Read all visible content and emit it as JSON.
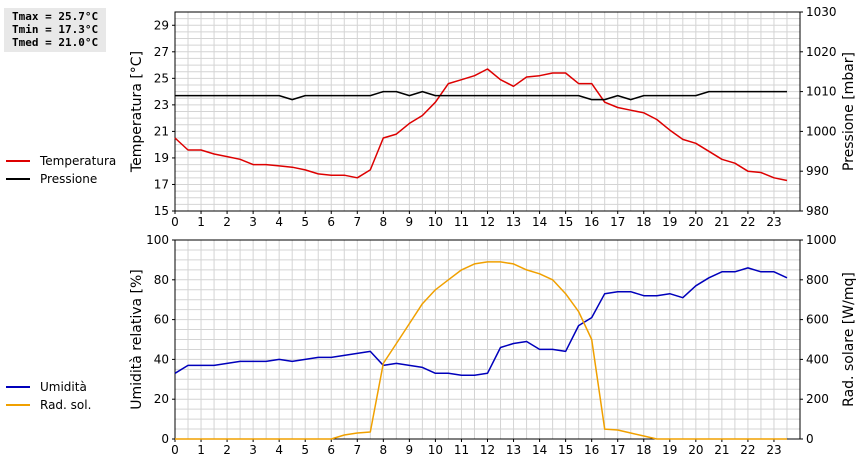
{
  "stats": {
    "tmax": "Tmax = 25.7°C",
    "tmin": "Tmin = 17.3°C",
    "tmed": "Tmed = 21.0°C"
  },
  "colors": {
    "temperatura": "#dd0000",
    "pressione": "#000000",
    "umidita": "#0000bb",
    "radsol": "#f0a000",
    "grid": "#d4d4d4"
  },
  "chart_data": [
    {
      "type": "line",
      "ylabel": "Temperatura [°C]",
      "y2label": "Pressione [mbar]",
      "xlim": [
        0,
        24
      ],
      "ylim": [
        15,
        30
      ],
      "y2lim": [
        980,
        1030
      ],
      "xticks": [
        "0",
        "1",
        "2",
        "3",
        "4",
        "5",
        "6",
        "7",
        "8",
        "9",
        "10",
        "11",
        "12",
        "13",
        "14",
        "15",
        "16",
        "17",
        "18",
        "19",
        "20",
        "21",
        "22",
        "23"
      ],
      "yticks": [
        "15",
        "17",
        "19",
        "21",
        "23",
        "25",
        "27",
        "29"
      ],
      "y2ticks": [
        "980",
        "990",
        "1000",
        "1010",
        "1020",
        "1030"
      ],
      "legend": "left",
      "series": [
        {
          "name": "Temperatura",
          "axis": "left",
          "x": [
            0,
            0.5,
            1,
            1.5,
            2,
            2.5,
            3,
            3.5,
            4,
            4.5,
            5,
            5.5,
            6,
            6.5,
            7,
            7.5,
            8,
            8.5,
            9,
            9.5,
            10,
            10.5,
            11,
            11.5,
            12,
            12.5,
            13,
            13.5,
            14,
            14.5,
            15,
            15.5,
            16,
            16.5,
            17,
            17.5,
            18,
            18.5,
            19,
            19.5,
            20,
            20.5,
            21,
            21.5,
            22,
            22.5,
            23,
            23.5
          ],
          "values": [
            20.5,
            19.6,
            19.6,
            19.3,
            19.1,
            18.9,
            18.5,
            18.5,
            18.4,
            18.3,
            18.1,
            17.8,
            17.7,
            17.7,
            17.5,
            18.1,
            20.5,
            20.8,
            21.6,
            22.2,
            23.2,
            24.6,
            24.9,
            25.2,
            25.7,
            24.9,
            24.4,
            25.1,
            25.2,
            25.4,
            25.4,
            24.6,
            24.6,
            23.2,
            22.8,
            22.6,
            22.4,
            21.9,
            21.1,
            20.4,
            20.1,
            19.5,
            18.9,
            18.6,
            18.0,
            17.9,
            17.5,
            17.3
          ]
        },
        {
          "name": "Pressione",
          "axis": "right",
          "x": [
            0,
            0.5,
            1,
            1.5,
            2,
            2.5,
            3,
            3.5,
            4,
            4.5,
            5,
            5.5,
            6,
            6.5,
            7,
            7.5,
            8,
            8.5,
            9,
            9.5,
            10,
            10.5,
            11,
            11.5,
            12,
            12.5,
            13,
            13.5,
            14,
            14.5,
            15,
            15.5,
            16,
            16.5,
            17,
            17.5,
            18,
            18.5,
            19,
            19.5,
            20,
            20.5,
            21,
            21.5,
            22,
            22.5,
            23,
            23.5
          ],
          "values": [
            1009,
            1009,
            1009,
            1009,
            1009,
            1009,
            1009,
            1009,
            1009,
            1008,
            1009,
            1009,
            1009,
            1009,
            1009,
            1009,
            1010,
            1010,
            1009,
            1010,
            1009,
            1009,
            1009,
            1009,
            1009,
            1009,
            1009,
            1009,
            1009,
            1009,
            1009,
            1009,
            1008,
            1008,
            1009,
            1008,
            1009,
            1009,
            1009,
            1009,
            1009,
            1010,
            1010,
            1010,
            1010,
            1010,
            1010,
            1010
          ]
        }
      ]
    },
    {
      "type": "line",
      "ylabel": "Umidità relativa [%]",
      "y2label": "Rad. solare [W/mq]",
      "xlim": [
        0,
        24
      ],
      "ylim": [
        0,
        100
      ],
      "y2lim": [
        0,
        1000
      ],
      "xticks": [
        "0",
        "1",
        "2",
        "3",
        "4",
        "5",
        "6",
        "7",
        "8",
        "9",
        "10",
        "11",
        "12",
        "13",
        "14",
        "15",
        "16",
        "17",
        "18",
        "19",
        "20",
        "21",
        "22",
        "23"
      ],
      "yticks": [
        "0",
        "20",
        "40",
        "60",
        "80",
        "100"
      ],
      "y2ticks": [
        "0",
        "200",
        "400",
        "600",
        "800",
        "1000"
      ],
      "legend": "left",
      "series": [
        {
          "name": "Umidità",
          "axis": "left",
          "x": [
            0,
            0.5,
            1,
            1.5,
            2,
            2.5,
            3,
            3.5,
            4,
            4.5,
            5,
            5.5,
            6,
            6.5,
            7,
            7.5,
            8,
            8.5,
            9,
            9.5,
            10,
            10.5,
            11,
            11.5,
            12,
            12.5,
            13,
            13.5,
            14,
            14.5,
            15,
            15.5,
            16,
            16.5,
            17,
            17.5,
            18,
            18.5,
            19,
            19.5,
            20,
            20.5,
            21,
            21.5,
            22,
            22.5,
            23,
            23.5
          ],
          "values": [
            33,
            37,
            37,
            37,
            38,
            39,
            39,
            39,
            40,
            39,
            40,
            41,
            41,
            42,
            43,
            44,
            37,
            38,
            37,
            36,
            33,
            33,
            32,
            32,
            33,
            46,
            48,
            49,
            45,
            45,
            44,
            57,
            61,
            73,
            74,
            74,
            72,
            72,
            73,
            71,
            77,
            81,
            84,
            84,
            86,
            84,
            84,
            81
          ]
        },
        {
          "name": "Rad. sol.",
          "axis": "right",
          "x": [
            0,
            0.5,
            1,
            1.5,
            2,
            2.5,
            3,
            3.5,
            4,
            4.5,
            5,
            5.5,
            6,
            6.5,
            7,
            7.5,
            8,
            8.5,
            9,
            9.5,
            10,
            10.5,
            11,
            11.5,
            12,
            12.5,
            13,
            13.5,
            14,
            14.5,
            15,
            15.5,
            16,
            16.5,
            17,
            17.5,
            18,
            18.5,
            19,
            19.5,
            20,
            20.5,
            21,
            21.5,
            22,
            22.5,
            23,
            23.5
          ],
          "values": [
            0,
            0,
            0,
            0,
            0,
            0,
            0,
            0,
            0,
            0,
            0,
            0,
            0,
            20,
            30,
            35,
            380,
            480,
            580,
            680,
            750,
            800,
            850,
            880,
            890,
            890,
            880,
            850,
            830,
            800,
            730,
            640,
            500,
            50,
            45,
            30,
            15,
            0,
            0,
            0,
            0,
            0,
            0,
            0,
            0,
            0,
            0,
            0
          ]
        }
      ]
    }
  ]
}
